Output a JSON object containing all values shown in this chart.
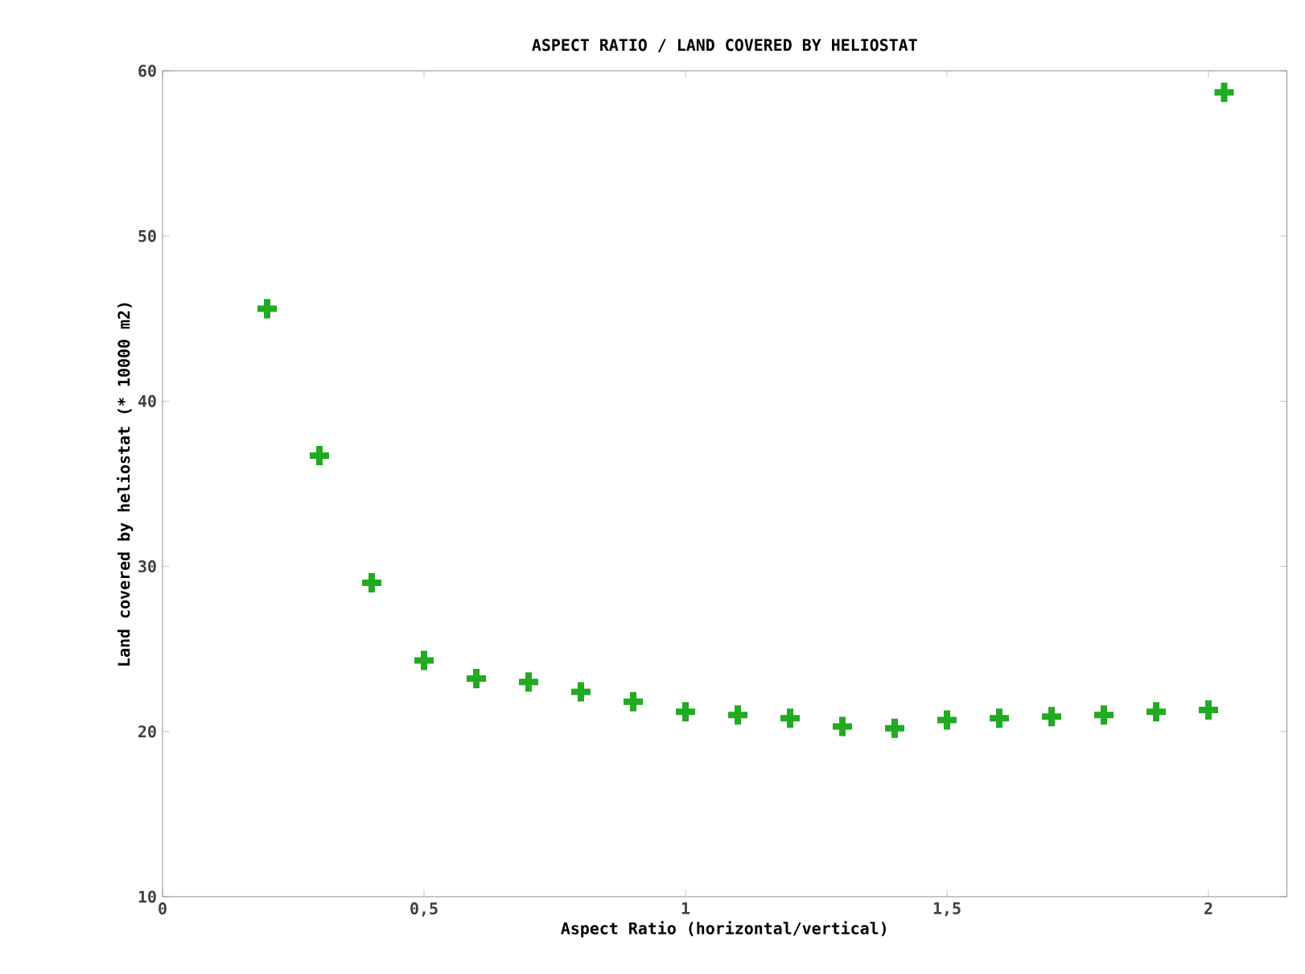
{
  "chart_data": {
    "type": "scatter",
    "title": "ASPECT RATIO / LAND COVERED BY HELIOSTAT",
    "xlabel": "Aspect Ratio (horizontal/vertical)",
    "ylabel": "Land covered by heliostat (* 10000 m2)",
    "x": [
      0.2,
      0.3,
      0.4,
      0.5,
      0.6,
      0.7,
      0.8,
      0.9,
      1.0,
      1.1,
      1.2,
      1.3,
      1.4,
      1.5,
      1.6,
      1.7,
      1.8,
      1.9,
      2.0,
      2.03
    ],
    "values": [
      45.6,
      36.7,
      29.0,
      24.3,
      23.2,
      23.0,
      22.4,
      21.8,
      21.2,
      21.0,
      20.8,
      20.3,
      20.2,
      20.7,
      20.8,
      20.9,
      21.0,
      21.2,
      21.3,
      58.7
    ],
    "color": "#22aa22",
    "marker": "cross",
    "xlim": [
      0,
      2.15
    ],
    "ylim": [
      10,
      60
    ],
    "xticks": [
      0,
      {
        "value": 0.5,
        "label": "0,5"
      },
      1,
      {
        "value": 1.5,
        "label": "1,5"
      },
      2
    ],
    "yticks": [
      10,
      20,
      30,
      40,
      50,
      60
    ]
  }
}
